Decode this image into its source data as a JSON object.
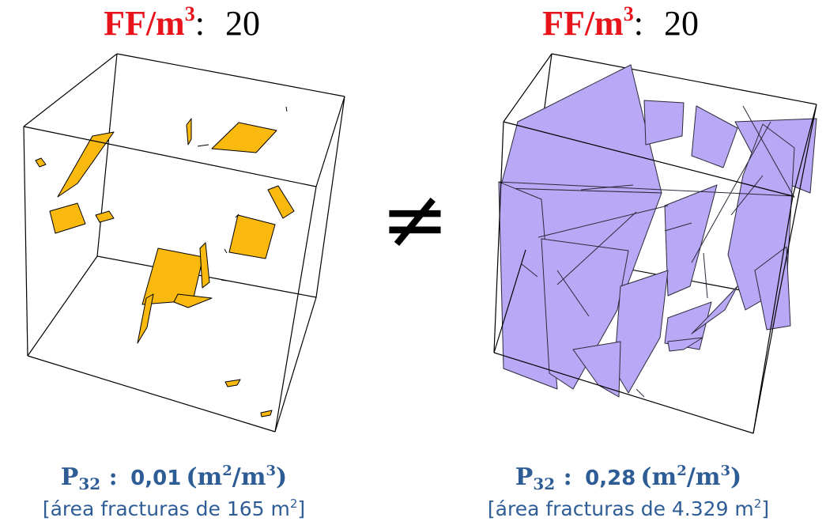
{
  "left": {
    "title_label": "FF/m",
    "title_label_exp": "3",
    "title_colon": ":",
    "title_value": "20",
    "p32_symbol": "P",
    "p32_subscript": "32",
    "p32_separator": " : ",
    "p32_value": "0,01",
    "p32_unit_open": "(m",
    "p32_unit_exp1": "2",
    "p32_unit_mid": "/m",
    "p32_unit_exp2": "3",
    "p32_unit_close": ")",
    "area_text": "[área fracturas de 165 m",
    "area_exp": "2",
    "area_close": "]",
    "fracture_color": "#f9b90f"
  },
  "right": {
    "title_label": "FF/m",
    "title_label_exp": "3",
    "title_colon": ":",
    "title_value": "20",
    "p32_symbol": "P",
    "p32_subscript": "32",
    "p32_separator": " : ",
    "p32_value": "0,28",
    "p32_unit_open": "(m",
    "p32_unit_exp1": "2",
    "p32_unit_mid": "/m",
    "p32_unit_exp2": "3",
    "p32_unit_close": ")",
    "area_text": "[área fracturas de 4.329 m",
    "area_exp": "2",
    "area_close": "]",
    "fracture_color": "#b9a8f5"
  },
  "comparison_symbol": "≠",
  "colors": {
    "title_red": "#e8141b",
    "caption_blue": "#2e5d96",
    "cube_edge": "#000000"
  }
}
